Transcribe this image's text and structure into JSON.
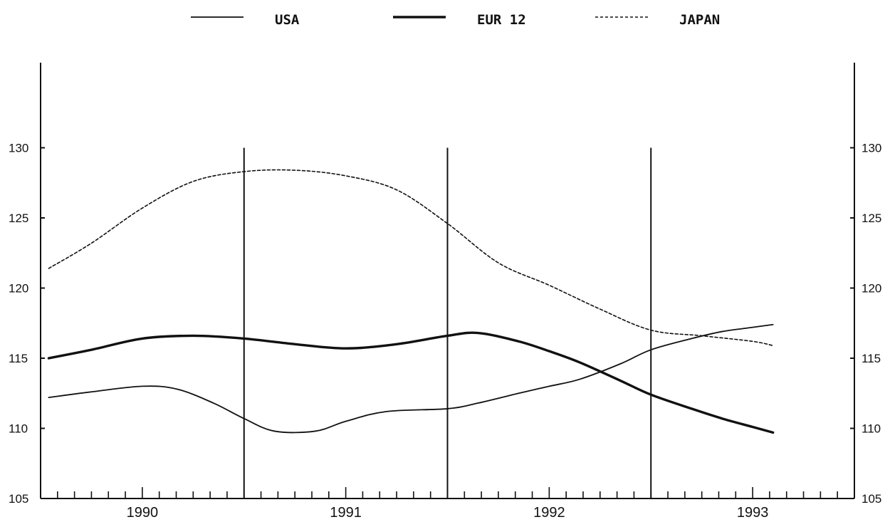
{
  "chart_data": {
    "type": "line",
    "title": "",
    "xlabel": "",
    "ylabel": "",
    "ylim": [
      105,
      135
    ],
    "xlim": [
      1989.5,
      1993.5
    ],
    "yticks": [
      105,
      110,
      115,
      120,
      125,
      130
    ],
    "ytick_labels": [
      "105",
      "110",
      "115",
      "120",
      "125",
      "130"
    ],
    "xtick_labels": [
      "1990",
      "1991",
      "1992",
      "1993"
    ],
    "year_dividers": [
      1990.5,
      1991.5,
      1992.5
    ],
    "legend_position": "top",
    "grid": false,
    "series": [
      {
        "name": "USA",
        "style": "thin-solid",
        "color": "#111111",
        "x": [
          1989.54,
          1989.75,
          1990.0,
          1990.17,
          1990.35,
          1990.5,
          1990.65,
          1990.85,
          1991.0,
          1991.2,
          1991.5,
          1991.65,
          1991.85,
          1992.0,
          1992.15,
          1992.35,
          1992.5,
          1992.7,
          1992.85,
          1993.0,
          1993.1
        ],
        "values": [
          112.2,
          112.6,
          113.0,
          112.8,
          111.8,
          110.7,
          109.8,
          109.8,
          110.5,
          111.2,
          111.4,
          111.8,
          112.5,
          113.0,
          113.5,
          114.6,
          115.6,
          116.4,
          116.9,
          117.2,
          117.4
        ]
      },
      {
        "name": "EUR 12",
        "style": "thick-solid",
        "color": "#111111",
        "x": [
          1989.54,
          1989.75,
          1990.0,
          1990.25,
          1990.5,
          1990.75,
          1991.0,
          1991.25,
          1991.5,
          1991.65,
          1991.85,
          1992.0,
          1992.15,
          1992.35,
          1992.5,
          1992.7,
          1992.85,
          1993.0,
          1993.1
        ],
        "values": [
          115.0,
          115.6,
          116.4,
          116.6,
          116.4,
          116.0,
          115.7,
          116.0,
          116.6,
          116.8,
          116.2,
          115.5,
          114.7,
          113.4,
          112.4,
          111.4,
          110.7,
          110.1,
          109.7
        ]
      },
      {
        "name": "JAPAN",
        "style": "dashed",
        "color": "#111111",
        "x": [
          1989.54,
          1989.75,
          1990.0,
          1990.25,
          1990.5,
          1990.75,
          1991.0,
          1991.25,
          1991.5,
          1991.75,
          1992.0,
          1992.25,
          1992.5,
          1992.75,
          1993.0,
          1993.1
        ],
        "values": [
          121.4,
          123.2,
          125.7,
          127.6,
          128.3,
          128.4,
          128.0,
          127.0,
          124.6,
          121.8,
          120.2,
          118.5,
          117.0,
          116.6,
          116.2,
          115.9
        ]
      }
    ]
  }
}
